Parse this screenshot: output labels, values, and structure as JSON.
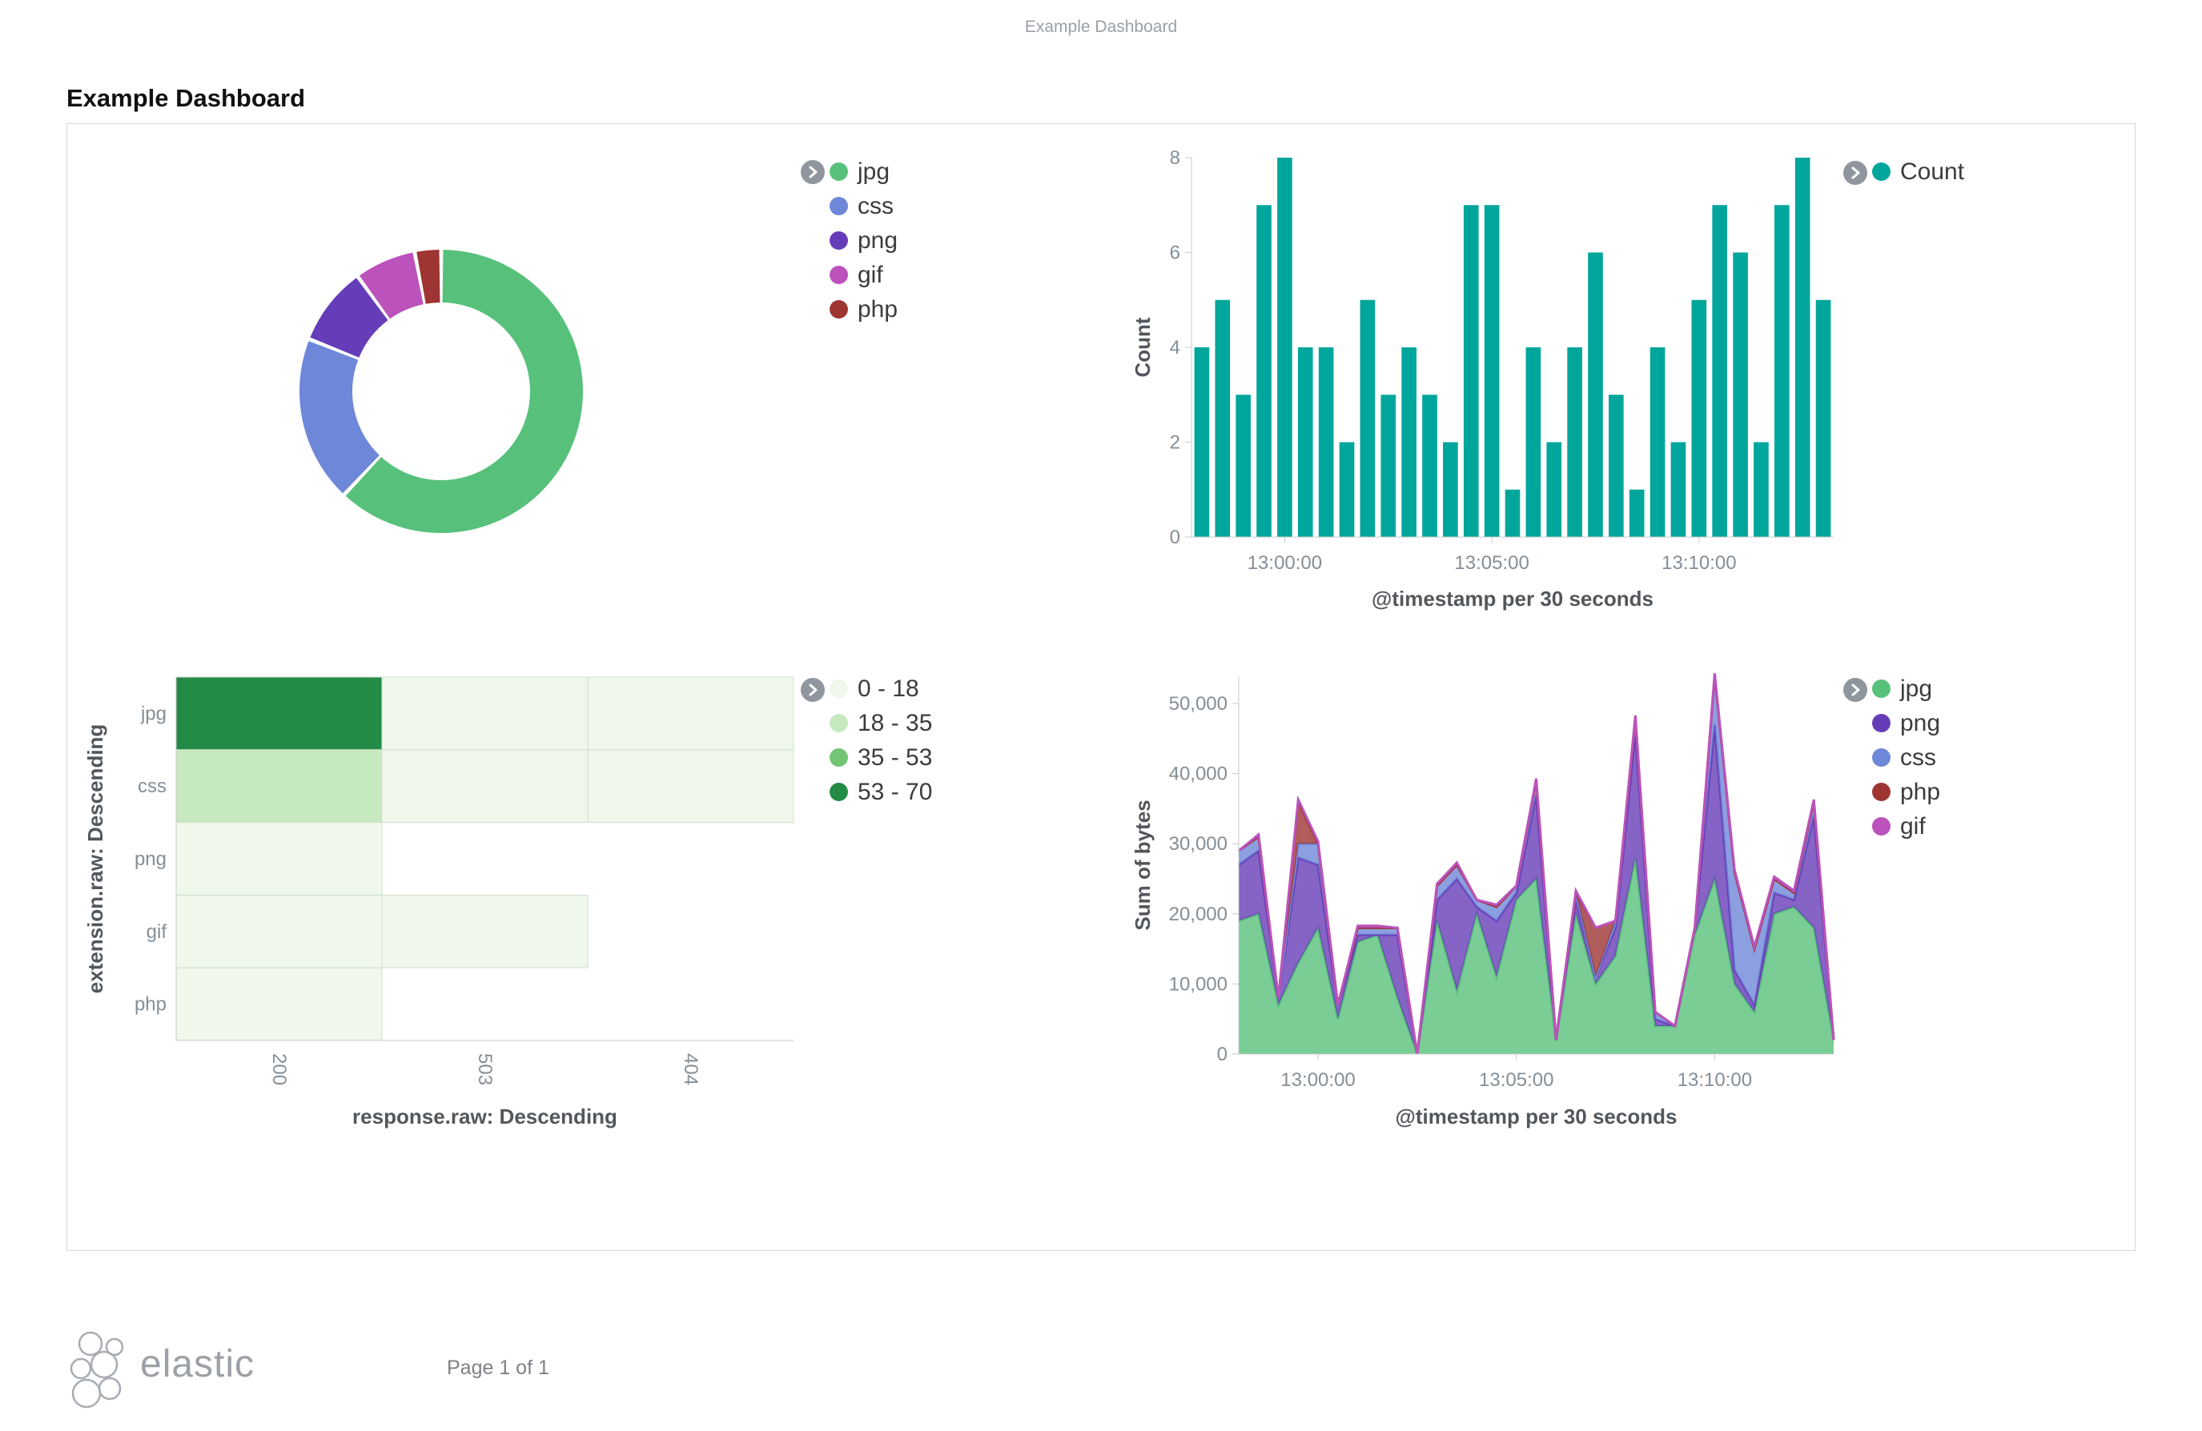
{
  "page": {
    "header_title": "Example Dashboard",
    "title": "Example Dashboard",
    "footer_brand": "elastic",
    "footer_page": "Page 1 of 1"
  },
  "icons": {
    "expand_legend": "chevron-right",
    "footer_logo": "elastic-cluster-logo"
  },
  "colors": {
    "bar_teal": "#00a69b",
    "jpg_green": "#57c17b",
    "css_blue": "#6f87d8",
    "png_purple": "#663db8",
    "gif_magenta": "#bc52bc",
    "php_red": "#9e3533",
    "axis_text": "#848e96",
    "axis_title": "#52575c"
  },
  "chart_data": [
    {
      "id": "donut",
      "type": "pie",
      "donut": true,
      "legend_position": "right",
      "labels": [
        "jpg",
        "css",
        "png",
        "gif",
        "php"
      ],
      "values": [
        62,
        19,
        9,
        7,
        3
      ],
      "colors": [
        "#57c17b",
        "#6f87d8",
        "#663db8",
        "#bc52bc",
        "#9e3533"
      ]
    },
    {
      "id": "count-histogram",
      "type": "bar",
      "series_name": "Count",
      "color": "#00a69b",
      "xlabel": "@timestamp per 30 seconds",
      "ylabel": "Count",
      "ylim": [
        0,
        8
      ],
      "yticks": [
        0,
        2,
        4,
        6,
        8
      ],
      "ytick_labels": [
        "0",
        "2",
        "4",
        "6",
        "8"
      ],
      "xticks": [
        {
          "index": 4,
          "label": "13:00:00"
        },
        {
          "index": 14,
          "label": "13:05:00"
        },
        {
          "index": 24,
          "label": "13:10:00"
        }
      ],
      "x": [
        "12:58:00",
        "12:58:30",
        "12:59:00",
        "12:59:30",
        "13:00:00",
        "13:00:30",
        "13:01:00",
        "13:01:30",
        "13:02:00",
        "13:02:30",
        "13:03:00",
        "13:03:30",
        "13:04:00",
        "13:04:30",
        "13:05:00",
        "13:05:30",
        "13:06:00",
        "13:06:30",
        "13:07:00",
        "13:07:30",
        "13:08:00",
        "13:08:30",
        "13:09:00",
        "13:09:30",
        "13:10:00",
        "13:10:30",
        "13:11:00",
        "13:11:30",
        "13:12:00",
        "13:12:30",
        "13:13:00"
      ],
      "values": [
        4,
        5,
        3,
        7,
        8,
        4,
        4,
        2,
        5,
        3,
        4,
        3,
        2,
        7,
        7,
        1,
        4,
        2,
        4,
        6,
        3,
        1,
        4,
        2,
        5,
        7,
        6,
        2,
        7,
        8,
        5
      ]
    },
    {
      "id": "heatmap",
      "type": "heatmap",
      "xlabel": "response.raw: Descending",
      "ylabel": "extension.raw: Descending",
      "rows": [
        "jpg",
        "css",
        "png",
        "gif",
        "php"
      ],
      "cols": [
        "200",
        "503",
        "404"
      ],
      "values": [
        [
          65,
          5,
          3
        ],
        [
          25,
          4,
          2
        ],
        [
          8,
          null,
          null
        ],
        [
          10,
          2,
          null
        ],
        [
          6,
          null,
          null
        ]
      ],
      "buckets": [
        {
          "label": "0 - 18",
          "max": 18,
          "color": "#eff8ea"
        },
        {
          "label": "18 - 35",
          "max": 35,
          "color": "#c7e9c0"
        },
        {
          "label": "35 - 53",
          "max": 53,
          "color": "#74c476"
        },
        {
          "label": "53 - 70",
          "max": 70,
          "color": "#238b45"
        }
      ]
    },
    {
      "id": "bytes-area",
      "type": "area",
      "stacked": true,
      "xlabel": "@timestamp per 30 seconds",
      "ylabel": "Sum of bytes",
      "ylim": [
        0,
        50000
      ],
      "yticks": [
        0,
        10000,
        20000,
        30000,
        40000,
        50000
      ],
      "ytick_labels": [
        "0",
        "10,000",
        "20,000",
        "30,000",
        "40,000",
        "50,000"
      ],
      "xticks": [
        {
          "index": 4,
          "label": "13:00:00"
        },
        {
          "index": 14,
          "label": "13:05:00"
        },
        {
          "index": 24,
          "label": "13:10:00"
        }
      ],
      "x": [
        "12:58:00",
        "12:58:30",
        "12:59:00",
        "12:59:30",
        "13:00:00",
        "13:00:30",
        "13:01:00",
        "13:01:30",
        "13:02:00",
        "13:02:30",
        "13:03:00",
        "13:03:30",
        "13:04:00",
        "13:04:30",
        "13:05:00",
        "13:05:30",
        "13:06:00",
        "13:06:30",
        "13:07:00",
        "13:07:30",
        "13:08:00",
        "13:08:30",
        "13:09:00",
        "13:09:30",
        "13:10:00",
        "13:10:30",
        "13:11:00",
        "13:11:30",
        "13:12:00",
        "13:12:30",
        "13:13:00"
      ],
      "series": [
        {
          "name": "jpg",
          "color": "#57c17b",
          "values": [
            19000,
            20000,
            7000,
            13000,
            18000,
            5000,
            16000,
            17000,
            8000,
            0,
            19000,
            9000,
            20000,
            11000,
            22000,
            25000,
            2000,
            20000,
            10000,
            14000,
            28000,
            4000,
            4000,
            17000,
            25000,
            10000,
            6000,
            20000,
            21000,
            18000,
            2000
          ]
        },
        {
          "name": "png",
          "color": "#663db8",
          "values": [
            8000,
            9000,
            1000,
            15000,
            9000,
            2000,
            1000,
            0,
            9000,
            0,
            3000,
            16000,
            1000,
            8000,
            1000,
            12000,
            0,
            2000,
            1000,
            4000,
            18000,
            1000,
            0,
            1000,
            22000,
            2000,
            1000,
            3000,
            1000,
            16000,
            0
          ]
        },
        {
          "name": "css",
          "color": "#6f87d8",
          "values": [
            2000,
            2000,
            0,
            2000,
            3000,
            0,
            1000,
            1000,
            1000,
            0,
            2000,
            2000,
            1000,
            2000,
            1000,
            2000,
            0,
            1000,
            0,
            1000,
            2000,
            1000,
            0,
            0,
            7000,
            14000,
            8000,
            2000,
            1000,
            2000,
            0
          ]
        },
        {
          "name": "php",
          "color": "#9e3533",
          "values": [
            0,
            0,
            0,
            6000,
            0,
            0,
            0,
            0,
            0,
            0,
            0,
            0,
            0,
            0,
            0,
            0,
            0,
            0,
            7000,
            0,
            0,
            0,
            0,
            0,
            0,
            0,
            0,
            0,
            0,
            0,
            0
          ]
        },
        {
          "name": "gif",
          "color": "#bc52bc",
          "values": [
            0,
            300,
            0,
            300,
            300,
            0,
            300,
            300,
            0,
            0,
            300,
            300,
            0,
            300,
            0,
            300,
            0,
            300,
            0,
            0,
            300,
            0,
            0,
            0,
            300,
            300,
            300,
            300,
            300,
            300,
            0
          ]
        }
      ]
    }
  ]
}
